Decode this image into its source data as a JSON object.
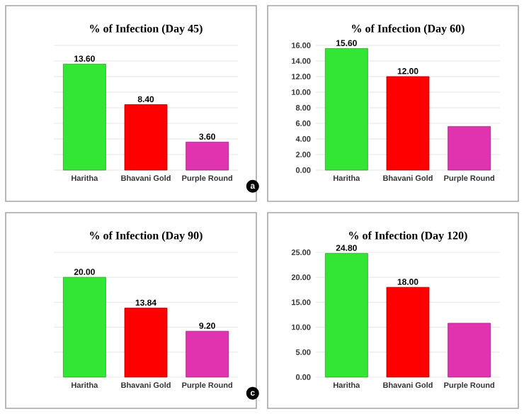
{
  "chart_data": [
    {
      "type": "bar",
      "title": "% of Infection (Day 45)",
      "categories": [
        "Haritha",
        "Bhavani Gold",
        "Purple Round"
      ],
      "values": [
        13.6,
        8.4,
        3.6
      ],
      "value_labels": [
        "13.60",
        "8.40",
        "3.60"
      ],
      "colors": [
        "#33e633",
        "#ff0000",
        "#e033b0"
      ],
      "ylim": [
        0,
        16
      ],
      "yticks": [
        0,
        2,
        4,
        6,
        8,
        10,
        12,
        14,
        16
      ],
      "grid": "y",
      "tick_labels": "x",
      "annotations": [
        "a"
      ]
    },
    {
      "type": "bar",
      "title": "% of Infection (Day 60)",
      "categories": [
        "Haritha",
        "Bhavani Gold",
        "Purple Round"
      ],
      "values": [
        15.6,
        12.0,
        5.6
      ],
      "value_labels": [
        "15.60",
        "12.00",
        null
      ],
      "colors": [
        "#33e633",
        "#ff0000",
        "#e033b0"
      ],
      "ylim": [
        0,
        16
      ],
      "yticks": [
        {
          "value": 0,
          "label": "0.00"
        },
        {
          "value": 2,
          "label": "2.00"
        },
        {
          "value": 4,
          "label": "4.00"
        },
        {
          "value": 6,
          "label": "6.00"
        },
        {
          "value": 8,
          "label": "8.00"
        },
        {
          "value": 10,
          "label": "10.00"
        },
        {
          "value": 12,
          "label": "12.00"
        },
        {
          "value": 14,
          "label": "14.00"
        },
        {
          "value": 16,
          "label": "16.00"
        }
      ],
      "grid": "y"
    },
    {
      "type": "bar",
      "title": "% of Infection (Day 90)",
      "categories": [
        "Haritha",
        "Bhavani Gold",
        "Purple Round"
      ],
      "values": [
        20.0,
        13.84,
        9.2
      ],
      "value_labels": [
        "20.00",
        "13.84",
        "9.20"
      ],
      "colors": [
        "#33e633",
        "#ff0000",
        "#e033b0"
      ],
      "ylim": [
        0,
        25
      ],
      "yticks": [
        0,
        5,
        10,
        15,
        20,
        25
      ],
      "grid": "y",
      "tick_labels": "x",
      "annotations": [
        "c"
      ]
    },
    {
      "type": "bar",
      "title": "% of Infection (Day 120)",
      "categories": [
        "Haritha",
        "Bhavani Gold",
        "Purple Round"
      ],
      "values": [
        24.8,
        18.0,
        10.8
      ],
      "value_labels": [
        "24.80",
        "18.00",
        null
      ],
      "colors": [
        "#33e633",
        "#ff0000",
        "#e033b0"
      ],
      "ylim": [
        0,
        25
      ],
      "yticks": [
        {
          "value": 0,
          "label": "0.00"
        },
        {
          "value": 5,
          "label": "5.00"
        },
        {
          "value": 10,
          "label": "10.00"
        },
        {
          "value": 15,
          "label": "15.00"
        },
        {
          "value": 20,
          "label": "20.00"
        },
        {
          "value": 25,
          "label": "25.00"
        }
      ],
      "grid": "y"
    }
  ]
}
